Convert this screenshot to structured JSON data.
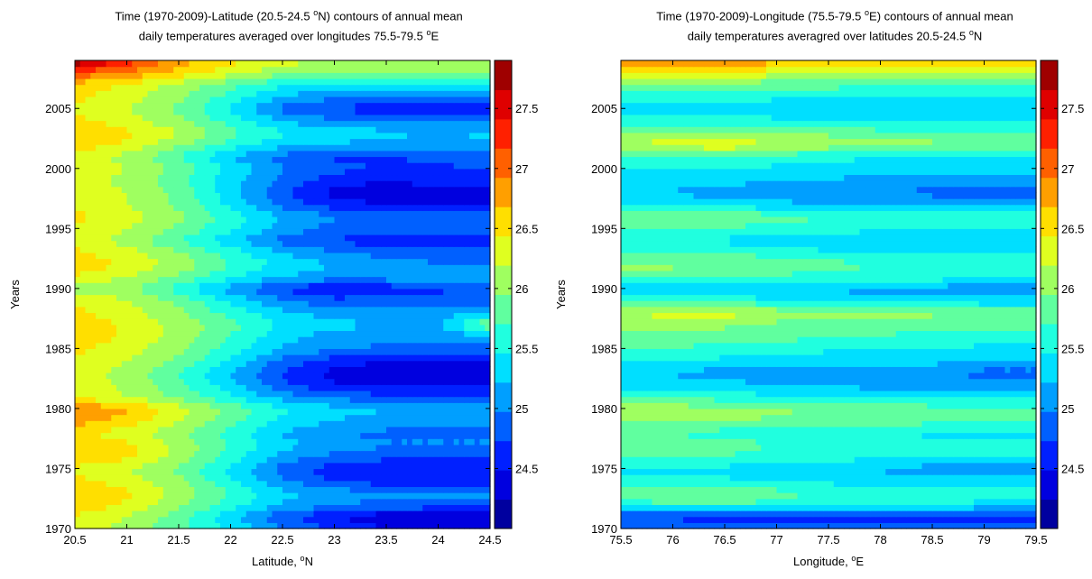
{
  "chart_data": [
    {
      "type": "heatmap",
      "subtype": "filled-contour",
      "title_lines": [
        "Time (1970-2009)-Latitude (20.5-24.5 <sup>o</sup>N) contours of annual mean",
        "daily temperatures averaged over longitudes 75.5-79.5 <sup>o</sup>E"
      ],
      "xlabel": "Latitude, <sup>o</sup>N",
      "ylabel": "Years",
      "xlim": [
        20.5,
        24.5
      ],
      "ylim": [
        1970,
        2009
      ],
      "x_ticks": [
        "20.5",
        "21",
        "21.5",
        "22",
        "22.5",
        "23",
        "23.5",
        "24",
        "24.5"
      ],
      "y_ticks": [
        "1970",
        "1975",
        "1980",
        "1985",
        "1990",
        "1995",
        "2000",
        "2005"
      ],
      "colorbar": {
        "range": [
          24.0,
          27.9
        ],
        "ticks": [
          "24.5",
          "25",
          "25.5",
          "26",
          "26.5",
          "27",
          "27.5"
        ]
      },
      "x": [
        20.5,
        21,
        21.5,
        22,
        22.5,
        23,
        23.5,
        24,
        24.5
      ],
      "years": [
        1970,
        1971,
        1972,
        1973,
        1974,
        1975,
        1976,
        1977,
        1978,
        1979,
        1980,
        1981,
        1982,
        1983,
        1984,
        1985,
        1986,
        1987,
        1988,
        1989,
        1990,
        1991,
        1992,
        1993,
        1994,
        1995,
        1996,
        1997,
        1998,
        1999,
        2000,
        2001,
        2002,
        2003,
        2004,
        2005,
        2006,
        2007,
        2008,
        2009
      ],
      "z": [
        [
          26.3,
          26.1,
          25.8,
          25.4,
          25.0,
          24.7,
          24.5,
          24.4,
          24.4
        ],
        [
          26.4,
          26.2,
          25.8,
          25.3,
          24.8,
          24.5,
          24.3,
          24.2,
          24.2
        ],
        [
          26.6,
          26.4,
          26.0,
          25.6,
          25.2,
          25.0,
          24.9,
          24.9,
          24.9
        ],
        [
          26.7,
          26.5,
          26.1,
          25.7,
          25.3,
          25.1,
          25.0,
          25.0,
          25.0
        ],
        [
          26.5,
          26.3,
          26.0,
          25.5,
          25.0,
          24.7,
          24.6,
          24.6,
          24.6
        ],
        [
          26.4,
          26.2,
          25.9,
          25.4,
          24.9,
          24.6,
          24.5,
          24.5,
          24.5
        ],
        [
          26.6,
          26.5,
          26.1,
          25.6,
          25.1,
          24.9,
          24.8,
          24.8,
          24.8
        ],
        [
          26.6,
          26.5,
          26.1,
          25.7,
          25.3,
          25.1,
          25.0,
          25.0,
          25.0
        ],
        [
          26.5,
          26.3,
          26.0,
          25.6,
          25.2,
          25.0,
          24.9,
          24.9,
          24.9
        ],
        [
          26.8,
          26.6,
          26.2,
          25.8,
          25.4,
          25.2,
          25.2,
          25.1,
          25.1
        ],
        [
          26.9,
          26.7,
          26.3,
          25.9,
          25.5,
          25.3,
          25.2,
          25.2,
          25.2
        ],
        [
          26.4,
          26.2,
          25.9,
          25.5,
          25.1,
          24.9,
          24.8,
          24.8,
          24.8
        ],
        [
          26.4,
          26.1,
          25.8,
          25.3,
          24.8,
          24.5,
          24.4,
          24.4,
          24.4
        ],
        [
          26.3,
          26.1,
          25.7,
          25.2,
          24.7,
          24.4,
          24.3,
          24.3,
          24.3
        ],
        [
          26.4,
          26.2,
          25.9,
          25.4,
          24.9,
          24.6,
          24.5,
          24.5,
          24.5
        ],
        [
          26.5,
          26.3,
          26.0,
          25.6,
          25.2,
          25.0,
          24.9,
          24.9,
          24.9
        ],
        [
          26.6,
          26.4,
          26.1,
          25.7,
          25.3,
          25.1,
          25.1,
          25.1,
          25.1
        ],
        [
          26.6,
          26.4,
          26.1,
          25.8,
          25.4,
          25.3,
          25.2,
          25.2,
          26.0
        ],
        [
          26.5,
          26.3,
          26.0,
          25.6,
          25.3,
          25.1,
          25.1,
          25.1,
          25.2
        ],
        [
          26.4,
          26.2,
          25.9,
          25.4,
          25.0,
          24.8,
          24.8,
          24.8,
          24.8
        ],
        [
          26.1,
          26.0,
          25.6,
          25.1,
          24.7,
          24.5,
          24.6,
          24.7,
          24.8
        ],
        [
          26.4,
          26.2,
          25.9,
          25.5,
          25.2,
          25.1,
          25.1,
          25.1,
          25.1
        ],
        [
          26.6,
          26.4,
          26.1,
          25.7,
          25.4,
          25.2,
          25.1,
          25.0,
          25.0
        ],
        [
          26.5,
          26.3,
          26.0,
          25.6,
          25.2,
          25.0,
          24.9,
          24.8,
          24.8
        ],
        [
          26.3,
          26.1,
          25.7,
          25.3,
          24.9,
          24.7,
          24.6,
          24.6,
          24.6
        ],
        [
          26.4,
          26.2,
          25.9,
          25.5,
          25.1,
          24.9,
          24.8,
          24.8,
          24.8
        ],
        [
          26.5,
          26.3,
          26.0,
          25.6,
          25.2,
          25.0,
          24.9,
          24.9,
          24.9
        ],
        [
          26.4,
          26.2,
          25.9,
          25.4,
          24.9,
          24.6,
          24.5,
          24.5,
          24.5
        ],
        [
          26.4,
          26.2,
          25.9,
          25.3,
          24.8,
          24.4,
          24.3,
          24.3,
          24.3
        ],
        [
          26.3,
          26.1,
          25.8,
          25.3,
          24.9,
          24.6,
          24.5,
          24.6,
          24.6
        ],
        [
          26.4,
          26.2,
          25.9,
          25.4,
          25.0,
          24.8,
          24.7,
          24.7,
          24.7
        ],
        [
          26.3,
          26.1,
          25.7,
          25.2,
          24.9,
          24.7,
          24.7,
          24.8,
          24.9
        ],
        [
          26.6,
          26.4,
          26.0,
          25.6,
          25.3,
          25.2,
          25.1,
          25.1,
          25.1
        ],
        [
          26.7,
          26.5,
          26.2,
          25.8,
          25.5,
          25.4,
          25.3,
          25.2,
          25.3
        ],
        [
          26.5,
          26.3,
          26.0,
          25.6,
          25.2,
          25.0,
          24.9,
          24.9,
          24.9
        ],
        [
          26.4,
          26.2,
          25.9,
          25.4,
          24.9,
          24.7,
          24.6,
          24.6,
          24.6
        ],
        [
          26.5,
          26.3,
          26.0,
          25.6,
          25.2,
          25.0,
          24.9,
          24.9,
          24.9
        ],
        [
          26.6,
          26.4,
          26.1,
          25.8,
          25.5,
          25.4,
          25.4,
          25.4,
          25.4
        ],
        [
          27.1,
          26.9,
          26.6,
          26.3,
          26.0,
          25.9,
          25.9,
          25.9,
          25.9
        ],
        [
          27.9,
          27.3,
          26.8,
          26.5,
          26.3,
          26.2,
          26.2,
          26.2,
          26.2
        ]
      ]
    },
    {
      "type": "heatmap",
      "subtype": "filled-contour",
      "title_lines": [
        "Time (1970-2009)-Longitude (75.5-79.5 <sup>o</sup>E) contours of annual mean",
        "daily temperatures averagred over latitudes 20.5-24.5 <sup>o</sup>N"
      ],
      "xlabel": "Longitude, <sup>o</sup>E",
      "ylabel": "Years",
      "xlim": [
        75.5,
        79.5
      ],
      "ylim": [
        1970,
        2009
      ],
      "x_ticks": [
        "75.5",
        "76",
        "76.5",
        "77",
        "77.5",
        "78",
        "78.5",
        "79",
        "79.5"
      ],
      "y_ticks": [
        "1970",
        "1975",
        "1980",
        "1985",
        "1990",
        "1995",
        "2000",
        "2005"
      ],
      "colorbar": {
        "range": [
          24.0,
          27.9
        ],
        "ticks": [
          "24.5",
          "25",
          "25.5",
          "26",
          "26.5",
          "27",
          "27.5"
        ]
      },
      "x": [
        75.5,
        76,
        76.5,
        77,
        77.5,
        78,
        78.5,
        79,
        79.5
      ],
      "years": [
        1970,
        1971,
        1972,
        1973,
        1974,
        1975,
        1976,
        1977,
        1978,
        1979,
        1980,
        1981,
        1982,
        1983,
        1984,
        1985,
        1986,
        1987,
        1988,
        1989,
        1990,
        1991,
        1992,
        1993,
        1994,
        1995,
        1996,
        1997,
        1998,
        1999,
        2000,
        2001,
        2002,
        2003,
        2004,
        2005,
        2006,
        2007,
        2008,
        2009
      ],
      "z": [
        [
          24.9,
          24.9,
          24.8,
          24.8,
          24.8,
          24.8,
          24.8,
          24.8,
          24.8
        ],
        [
          24.7,
          24.7,
          24.6,
          24.6,
          24.6,
          24.6,
          24.6,
          24.6,
          24.6
        ],
        [
          25.6,
          25.7,
          25.7,
          25.6,
          25.5,
          25.5,
          25.5,
          25.4,
          25.4
        ],
        [
          25.8,
          25.9,
          26.0,
          25.8,
          25.7,
          25.6,
          25.6,
          25.6,
          25.6
        ],
        [
          25.5,
          25.5,
          25.5,
          25.4,
          25.4,
          25.3,
          25.3,
          25.3,
          25.3
        ],
        [
          25.4,
          25.4,
          25.4,
          25.3,
          25.2,
          25.2,
          25.1,
          25.1,
          25.1
        ],
        [
          25.7,
          25.7,
          25.7,
          25.6,
          25.6,
          25.5,
          25.5,
          25.5,
          25.5
        ],
        [
          25.8,
          25.8,
          25.8,
          25.7,
          25.7,
          25.6,
          25.6,
          25.6,
          25.6
        ],
        [
          25.7,
          25.7,
          25.6,
          25.6,
          25.5,
          25.5,
          25.4,
          25.4,
          25.4
        ],
        [
          26.0,
          26.0,
          26.0,
          25.9,
          25.8,
          25.8,
          25.8,
          25.7,
          25.7
        ],
        [
          26.1,
          26.1,
          26.0,
          26.0,
          25.9,
          25.9,
          25.8,
          25.8,
          25.8
        ],
        [
          25.6,
          25.6,
          25.6,
          25.5,
          25.5,
          25.4,
          25.4,
          25.4,
          25.4
        ],
        [
          25.3,
          25.3,
          25.3,
          25.2,
          25.2,
          25.1,
          25.1,
          25.1,
          25.1
        ],
        [
          25.2,
          25.2,
          25.1,
          25.1,
          25.0,
          25.0,
          25.0,
          24.9,
          24.9
        ],
        [
          25.5,
          25.5,
          25.4,
          25.4,
          25.3,
          25.3,
          25.3,
          25.2,
          25.2
        ],
        [
          25.7,
          25.7,
          25.6,
          25.6,
          25.5,
          25.5,
          25.5,
          25.4,
          25.4
        ],
        [
          25.9,
          25.9,
          25.8,
          25.8,
          25.7,
          25.7,
          25.6,
          25.6,
          25.6
        ],
        [
          26.0,
          26.0,
          26.0,
          25.9,
          25.9,
          25.8,
          25.8,
          25.8,
          25.8
        ],
        [
          26.2,
          26.3,
          26.3,
          26.1,
          26.0,
          26.0,
          26.0,
          25.9,
          25.9
        ],
        [
          25.6,
          25.6,
          25.6,
          25.5,
          25.4,
          25.4,
          25.4,
          25.3,
          25.3
        ],
        [
          25.3,
          25.3,
          25.3,
          25.2,
          25.2,
          25.1,
          25.1,
          25.1,
          25.1
        ],
        [
          25.8,
          25.8,
          25.7,
          25.7,
          25.6,
          25.6,
          25.6,
          25.5,
          25.5
        ],
        [
          26.0,
          26.0,
          26.0,
          25.8,
          25.8,
          25.7,
          25.7,
          25.7,
          25.7
        ],
        [
          25.7,
          25.7,
          25.7,
          25.6,
          25.5,
          25.5,
          25.5,
          25.4,
          25.4
        ],
        [
          25.4,
          25.4,
          25.4,
          25.3,
          25.3,
          25.2,
          25.2,
          25.2,
          25.2
        ],
        [
          25.7,
          25.7,
          25.7,
          25.6,
          25.6,
          25.5,
          25.5,
          25.5,
          25.5
        ],
        [
          25.9,
          25.9,
          25.9,
          25.8,
          25.7,
          25.7,
          25.7,
          25.6,
          25.6
        ],
        [
          25.4,
          25.4,
          25.4,
          25.3,
          25.2,
          25.2,
          25.2,
          25.1,
          25.1
        ],
        [
          25.2,
          25.2,
          25.1,
          25.1,
          25.0,
          25.0,
          24.9,
          24.9,
          24.9
        ],
        [
          25.3,
          25.3,
          25.3,
          25.2,
          25.2,
          25.1,
          25.1,
          25.1,
          25.1
        ],
        [
          25.5,
          25.5,
          25.5,
          25.4,
          25.4,
          25.3,
          25.3,
          25.3,
          25.3
        ],
        [
          25.7,
          25.7,
          25.7,
          25.6,
          25.5,
          25.5,
          25.5,
          25.4,
          25.4
        ],
        [
          26.2,
          26.3,
          26.4,
          26.2,
          26.1,
          26.0,
          26.0,
          25.9,
          25.9
        ],
        [
          26.0,
          26.0,
          26.0,
          25.9,
          25.9,
          25.8,
          25.8,
          25.8,
          25.8
        ],
        [
          25.6,
          25.6,
          25.6,
          25.5,
          25.5,
          25.4,
          25.4,
          25.4,
          25.4
        ],
        [
          25.4,
          25.4,
          25.4,
          25.3,
          25.3,
          25.2,
          25.2,
          25.2,
          25.2
        ],
        [
          25.6,
          25.6,
          25.6,
          25.5,
          25.5,
          25.4,
          25.4,
          25.4,
          25.4
        ],
        [
          25.9,
          25.9,
          25.9,
          25.8,
          25.8,
          25.7,
          25.7,
          25.7,
          25.7
        ],
        [
          26.4,
          26.4,
          26.4,
          26.3,
          26.3,
          26.3,
          26.3,
          26.3,
          26.3
        ],
        [
          26.8,
          26.8,
          26.8,
          26.8,
          26.6,
          26.5,
          26.5,
          26.5,
          26.5
        ]
      ]
    }
  ]
}
